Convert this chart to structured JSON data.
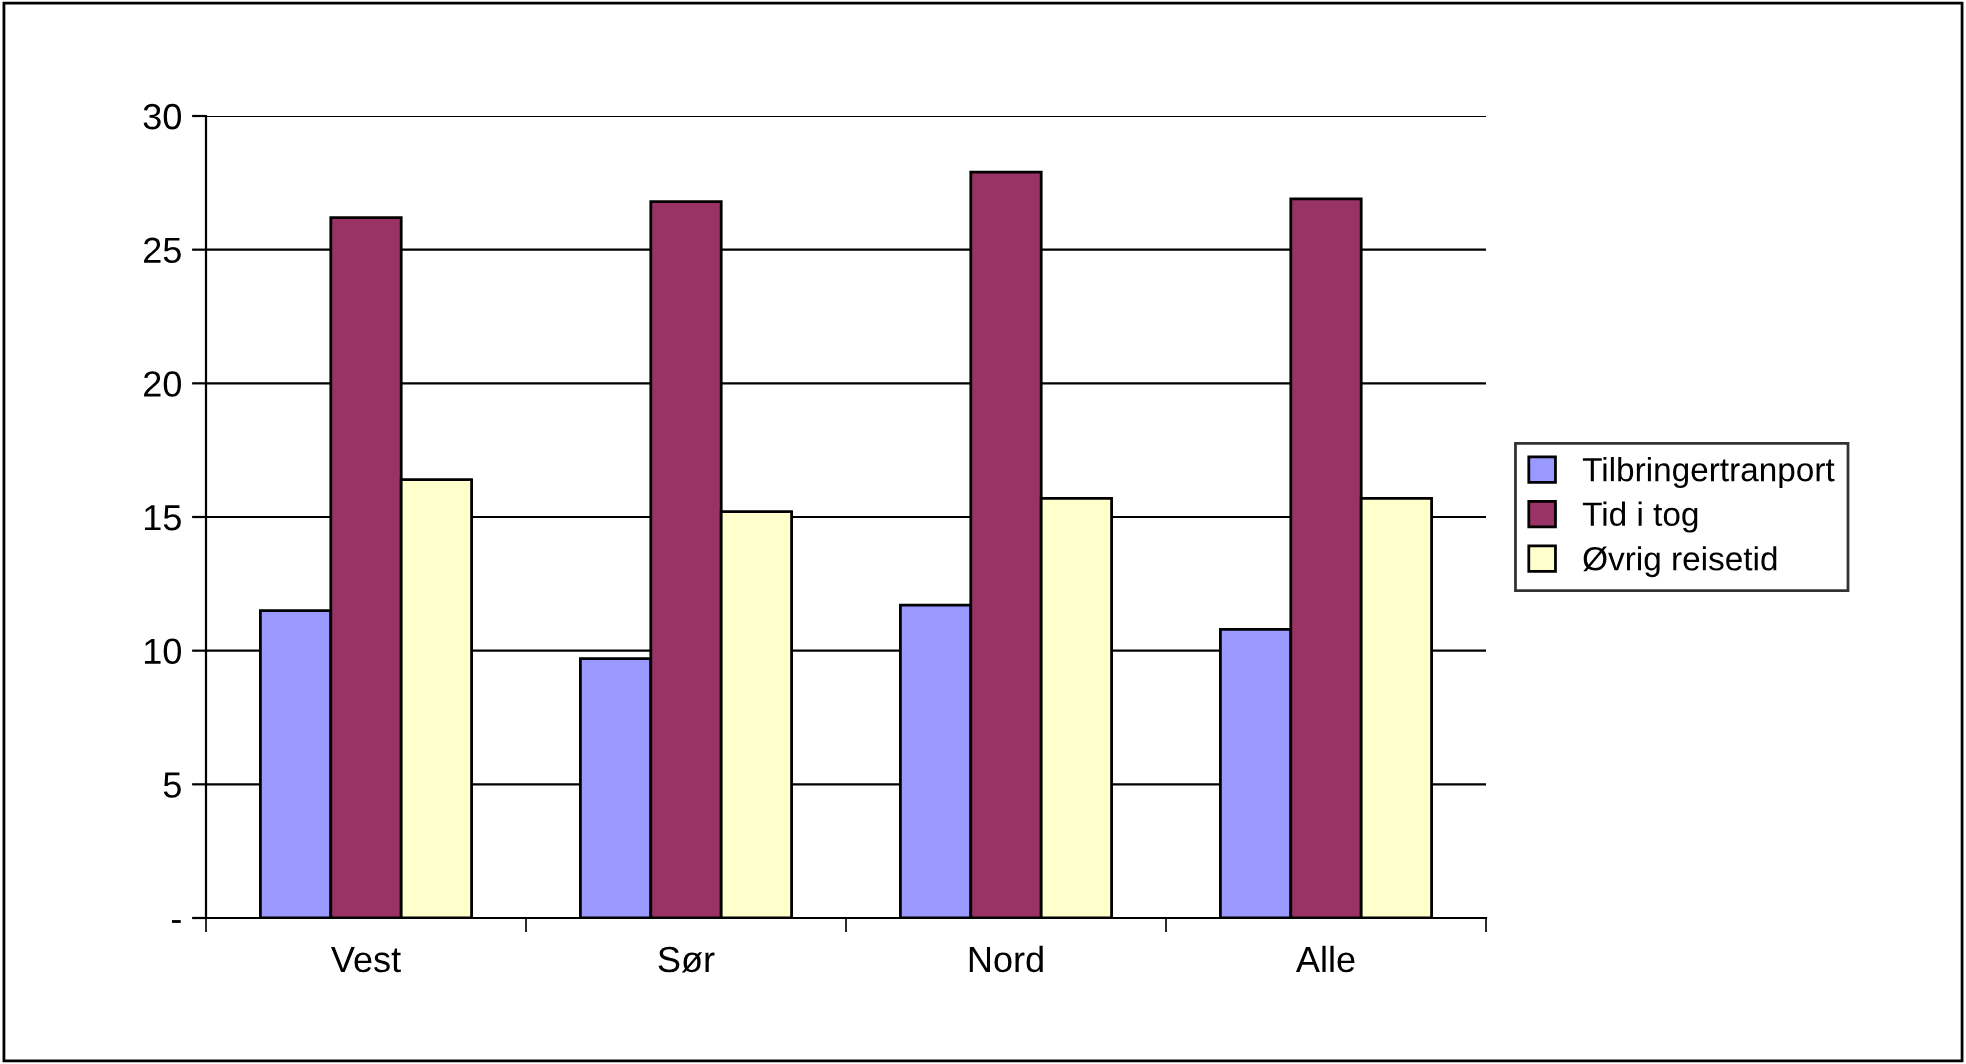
{
  "chart_data": {
    "type": "bar",
    "categories": [
      "Vest",
      "Sør",
      "Nord",
      "Alle"
    ],
    "series": [
      {
        "name": "Tilbringertranport",
        "color": "#9999ff",
        "values": [
          11.5,
          9.7,
          11.7,
          10.8
        ]
      },
      {
        "name": "Tid i tog",
        "color": "#993366",
        "values": [
          26.2,
          26.8,
          27.9,
          26.9
        ]
      },
      {
        "name": "Øvrig reisetid",
        "color": "#ffffcc",
        "values": [
          16.4,
          15.2,
          15.7,
          15.7
        ]
      }
    ],
    "ylim": [
      0,
      30
    ],
    "yticks": [
      {
        "value": 0,
        "label": "-"
      },
      5,
      10,
      15,
      20,
      25,
      30
    ],
    "grid": "y",
    "legend": "right"
  }
}
